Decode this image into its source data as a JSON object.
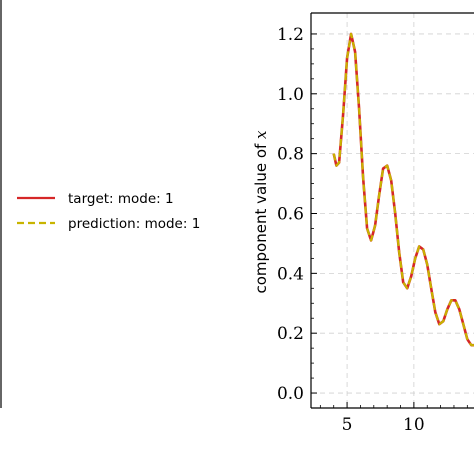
{
  "chart_data": {
    "type": "line",
    "ylabel_text": "component value of ",
    "ylabel_var": "x",
    "ylim": [
      -0.05,
      1.27
    ],
    "xlim": [
      2.3,
      14.5
    ],
    "yticks": [
      0.0,
      0.2,
      0.4,
      0.6,
      0.8,
      1.0,
      1.2
    ],
    "ytick_labels": [
      "0.0",
      "0.2",
      "0.4",
      "0.6",
      "0.8",
      "1.0",
      "1.2"
    ],
    "xticks": [
      5,
      10
    ],
    "xtick_labels": [
      "5",
      "10"
    ],
    "grid": true,
    "legend": [
      {
        "label": "target: mode: 1",
        "color": "#d62728",
        "style": "solid"
      },
      {
        "label": "prediction: mode: 1",
        "color": "#c8b400",
        "style": "dashed"
      }
    ],
    "series": [
      {
        "name": "target: mode: 1",
        "x": [
          4.0,
          4.2,
          4.4,
          4.7,
          5.0,
          5.3,
          5.6,
          5.9,
          6.2,
          6.5,
          6.8,
          7.1,
          7.4,
          7.7,
          8.0,
          8.3,
          8.6,
          8.9,
          9.2,
          9.5,
          9.8,
          10.1,
          10.4,
          10.7,
          11.0,
          11.3,
          11.6,
          11.9,
          12.2,
          12.5,
          12.8,
          13.1,
          13.4,
          13.7,
          14.0,
          14.3,
          14.5
        ],
        "y": [
          0.8,
          0.76,
          0.77,
          0.93,
          1.12,
          1.2,
          1.14,
          0.95,
          0.72,
          0.55,
          0.51,
          0.56,
          0.66,
          0.75,
          0.76,
          0.71,
          0.6,
          0.47,
          0.37,
          0.35,
          0.39,
          0.45,
          0.49,
          0.48,
          0.43,
          0.35,
          0.27,
          0.23,
          0.24,
          0.28,
          0.31,
          0.31,
          0.28,
          0.23,
          0.18,
          0.16,
          0.16
        ]
      },
      {
        "name": "prediction: mode: 1",
        "x": [
          4.0,
          4.2,
          4.4,
          4.7,
          5.0,
          5.3,
          5.6,
          5.9,
          6.2,
          6.5,
          6.8,
          7.1,
          7.4,
          7.7,
          8.0,
          8.3,
          8.6,
          8.9,
          9.2,
          9.5,
          9.8,
          10.1,
          10.4,
          10.7,
          11.0,
          11.3,
          11.6,
          11.9,
          12.2,
          12.5,
          12.8,
          13.1,
          13.4,
          13.7,
          14.0,
          14.3,
          14.5
        ],
        "y": [
          0.8,
          0.76,
          0.77,
          0.93,
          1.12,
          1.2,
          1.14,
          0.95,
          0.72,
          0.55,
          0.51,
          0.56,
          0.66,
          0.75,
          0.76,
          0.71,
          0.6,
          0.47,
          0.37,
          0.35,
          0.39,
          0.45,
          0.49,
          0.48,
          0.43,
          0.35,
          0.27,
          0.23,
          0.24,
          0.28,
          0.31,
          0.31,
          0.28,
          0.23,
          0.18,
          0.16,
          0.16
        ]
      }
    ]
  }
}
